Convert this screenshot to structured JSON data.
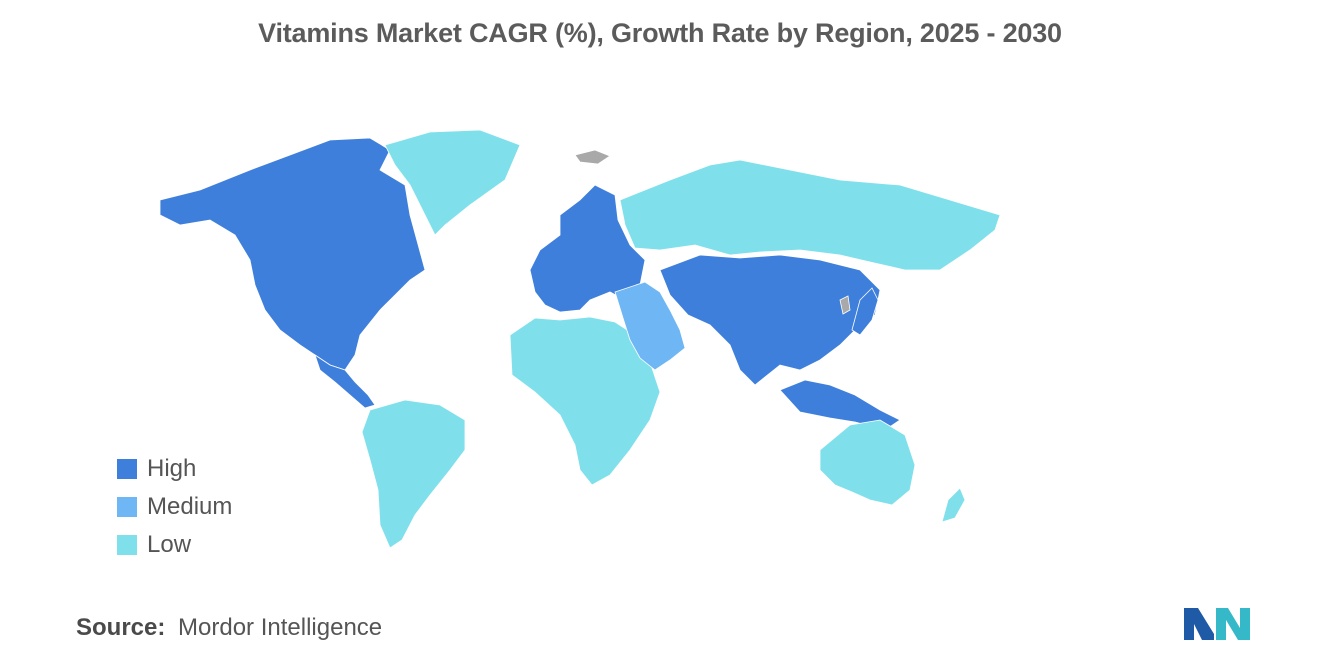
{
  "title": "Vitamins Market CAGR (%), Growth Rate by Region, 2025 - 2030",
  "colors": {
    "high": "#3f7fdc",
    "medium": "#6fb6f5",
    "low": "#7fe0ec",
    "no_data": "#a9a9a9",
    "logo_dark": "#1f5aa6",
    "logo_light": "#35b9c9"
  },
  "legend": [
    {
      "label": "High",
      "level": "high"
    },
    {
      "label": "Medium",
      "level": "medium"
    },
    {
      "label": "Low",
      "level": "low"
    }
  ],
  "regions": [
    {
      "name": "North America",
      "level": "high"
    },
    {
      "name": "Europe",
      "level": "high"
    },
    {
      "name": "Asia-Pacific",
      "level": "high"
    },
    {
      "name": "Middle East",
      "level": "medium"
    },
    {
      "name": "South America",
      "level": "low"
    },
    {
      "name": "Africa",
      "level": "low"
    },
    {
      "name": "Russia",
      "level": "low"
    },
    {
      "name": "Greenland",
      "level": "low"
    },
    {
      "name": "Australia & New Zealand",
      "level": "low"
    }
  ],
  "source": {
    "label": "Source:",
    "value": "Mordor Intelligence"
  }
}
